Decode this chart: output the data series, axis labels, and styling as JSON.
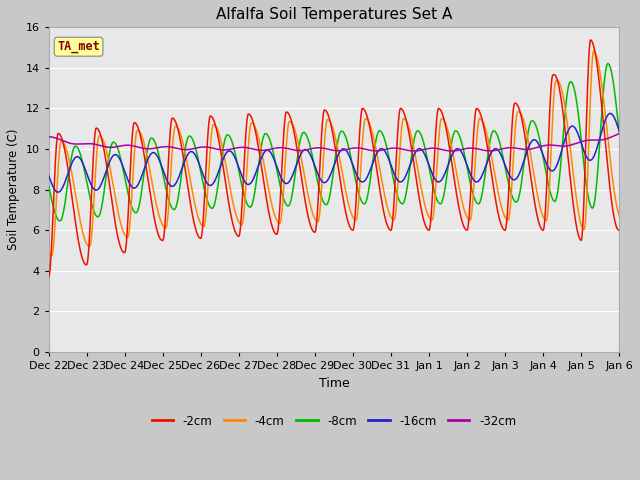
{
  "title": "Alfalfa Soil Temperatures Set A",
  "xlabel": "Time",
  "ylabel": "Soil Temperature (C)",
  "ylim": [
    0,
    16
  ],
  "yticks": [
    0,
    2,
    4,
    6,
    8,
    10,
    12,
    14,
    16
  ],
  "annotation_text": "TA_met",
  "annotation_color": "#8b0000",
  "annotation_bg": "#ffff99",
  "legend_labels": [
    "-2cm",
    "-4cm",
    "-8cm",
    "-16cm",
    "-32cm"
  ],
  "line_colors": [
    "#ee1100",
    "#ff8800",
    "#00bb00",
    "#2222cc",
    "#aa00aa"
  ],
  "x_tick_labels": [
    "Dec 22",
    "Dec 23",
    "Dec 24",
    "Dec 25",
    "Dec 26",
    "Dec 27",
    "Dec 28",
    "Dec 29",
    "Dec 30",
    "Dec 31",
    "Jan 1",
    "Jan 2",
    "Jan 3",
    "Jan 4",
    "Jan 5",
    "Jan 6"
  ]
}
